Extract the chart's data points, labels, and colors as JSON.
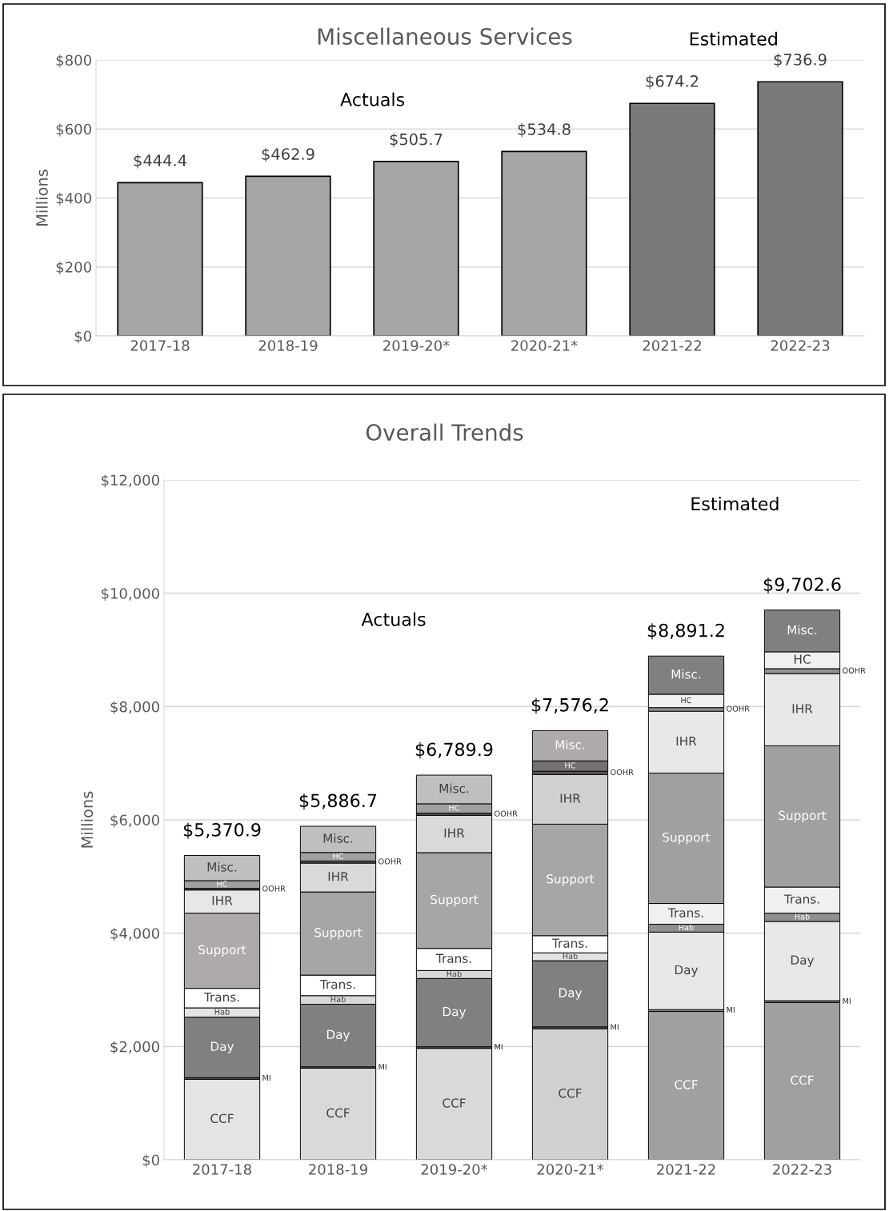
{
  "chart_data": [
    {
      "type": "bar",
      "title": "Miscellaneous Services",
      "ylabel": "Millions",
      "annotations": [
        "Actuals",
        "Estimated"
      ],
      "categories": [
        "2017-18",
        "2018-19",
        "2019-20*",
        "2020-21*",
        "2021-22",
        "2022-23"
      ],
      "values": [
        444.4,
        462.9,
        505.7,
        534.8,
        674.2,
        736.9
      ],
      "colors": [
        "#a6a6a6",
        "#a6a6a6",
        "#a6a6a6",
        "#a6a6a6",
        "#7a7a7a",
        "#7a7a7a"
      ],
      "value_labels": [
        "$444.4",
        "$462.9",
        "$505.7",
        "$534.8",
        "$674.2",
        "$736.9"
      ],
      "ylim": [
        0,
        800
      ],
      "yticks": [
        {
          "value": 0,
          "label": "$0"
        },
        {
          "value": 200,
          "label": "$200"
        },
        {
          "value": 400,
          "label": "$400"
        },
        {
          "value": 600,
          "label": "$600"
        },
        {
          "value": 800,
          "label": "$800"
        }
      ],
      "grid": "y",
      "legend": false
    },
    {
      "type": "bar",
      "stacked": true,
      "title": "Overall Trends",
      "ylabel": "Millions",
      "annotations": [
        "Actuals",
        "Estimated"
      ],
      "categories": [
        "2017-18",
        "2018-19",
        "2019-20*",
        "2020-21*",
        "2021-22",
        "2022-23"
      ],
      "series": [
        {
          "name": "CCF",
          "values": [
            1422,
            1617,
            1967,
            2315,
            2618,
            2776
          ],
          "colors": [
            "#e4e4e4",
            "#d9d9d9",
            "#d9d9d9",
            "#d0d0d0",
            "#a0a0a0",
            "#a0a0a0"
          ]
        },
        {
          "name": "MI",
          "values": [
            28,
            24,
            28,
            32,
            32,
            32
          ],
          "colors": [
            "#595959",
            "#595959",
            "#595959",
            "#595959",
            "#909090",
            "#909090"
          ]
        },
        {
          "name": "Day",
          "values": [
            1068,
            1105,
            1205,
            1167,
            1369,
            1400
          ],
          "colors": [
            "#808080",
            "#808080",
            "#808080",
            "#808080",
            "#e8e8e8",
            "#e8e8e8"
          ]
        },
        {
          "name": "Hab",
          "values": [
            164,
            151,
            141,
            139,
            139,
            145
          ],
          "colors": [
            "#e4e4e4",
            "#d9d9d9",
            "#d9d9d9",
            "#e4e4e4",
            "#909090",
            "#909090"
          ]
        },
        {
          "name": "Trans.",
          "values": [
            344,
            363,
            390,
            303,
            366,
            461
          ],
          "colors": [
            "#ffffff",
            "#ffffff",
            "#ffffff",
            "#ffffff",
            "#f0f0f0",
            "#f0f0f0"
          ]
        },
        {
          "name": "Support",
          "values": [
            1327,
            1468,
            1690,
            1968,
            2302,
            2493
          ],
          "colors": [
            "#aeaaaa",
            "#a6a6a6",
            "#a6a6a6",
            "#a6a6a6",
            "#a0a0a0",
            "#a0a0a0"
          ]
        },
        {
          "name": "IHR",
          "values": [
            409,
            509,
            659,
            877,
            1092,
            1274
          ],
          "colors": [
            "#e7e7e7",
            "#d9d9d9",
            "#d9d9d9",
            "#d0d0d0",
            "#e8e8e8",
            "#e8e8e8"
          ]
        },
        {
          "name": "OOHR",
          "values": [
            28,
            37,
            38,
            57,
            63,
            88
          ],
          "colors": [
            "#595959",
            "#595959",
            "#595959",
            "#595959",
            "#909090",
            "#909090"
          ]
        },
        {
          "name": "HC",
          "values": [
            137,
            150,
            166,
            183,
            236,
            297
          ],
          "colors": [
            "#a0a0a0",
            "#a0a0a0",
            "#a0a0a0",
            "#767171",
            "#f0f0f0",
            "#f0f0f0"
          ]
        },
        {
          "name": "Misc.",
          "values": [
            444.4,
            462.9,
            505.7,
            534.8,
            674.2,
            736.9
          ],
          "colors": [
            "#bfbfbf",
            "#bfbfbf",
            "#bfbfbf",
            "#aeaaaa",
            "#808080",
            "#808080"
          ]
        }
      ],
      "totals": [
        "$5,370.9",
        "$5,886.7",
        "$6,789.9",
        "$7,576,2",
        "$8,891.2",
        "$9,702.6"
      ],
      "ylim": [
        0,
        12000
      ],
      "yticks": [
        {
          "value": 0,
          "label": "$0"
        },
        {
          "value": 2000,
          "label": "$2,000"
        },
        {
          "value": 4000,
          "label": "$4,000"
        },
        {
          "value": 6000,
          "label": "$6,000"
        },
        {
          "value": 8000,
          "label": "$8,000"
        },
        {
          "value": 10000,
          "label": "$10,000"
        },
        {
          "value": 12000,
          "label": "$12,000"
        }
      ],
      "grid": "y",
      "legend": false
    }
  ]
}
